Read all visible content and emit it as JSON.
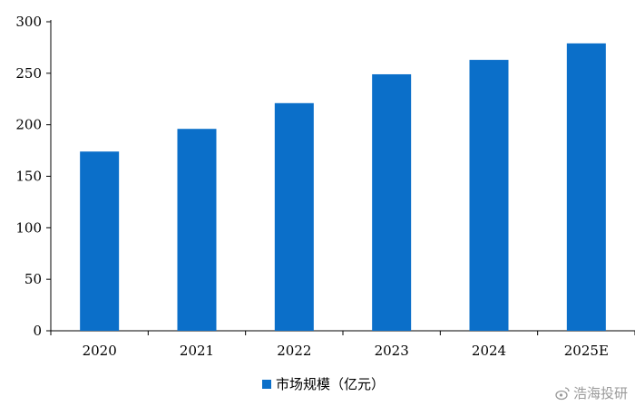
{
  "chart_data": {
    "type": "bar",
    "categories": [
      "2020",
      "2021",
      "2022",
      "2023",
      "2024",
      "2025E"
    ],
    "series": [
      {
        "name": "市场规模（亿元）",
        "values": [
          174,
          196,
          221,
          249,
          263,
          279
        ],
        "color": "#0b6fc9"
      }
    ],
    "ylim": [
      0,
      300
    ],
    "yticks": [
      0,
      50,
      100,
      150,
      200,
      250,
      300
    ],
    "grid": false,
    "legend_position": "bottom-center"
  },
  "watermark": {
    "text": "浩海投研",
    "icon": "weibo-icon"
  }
}
